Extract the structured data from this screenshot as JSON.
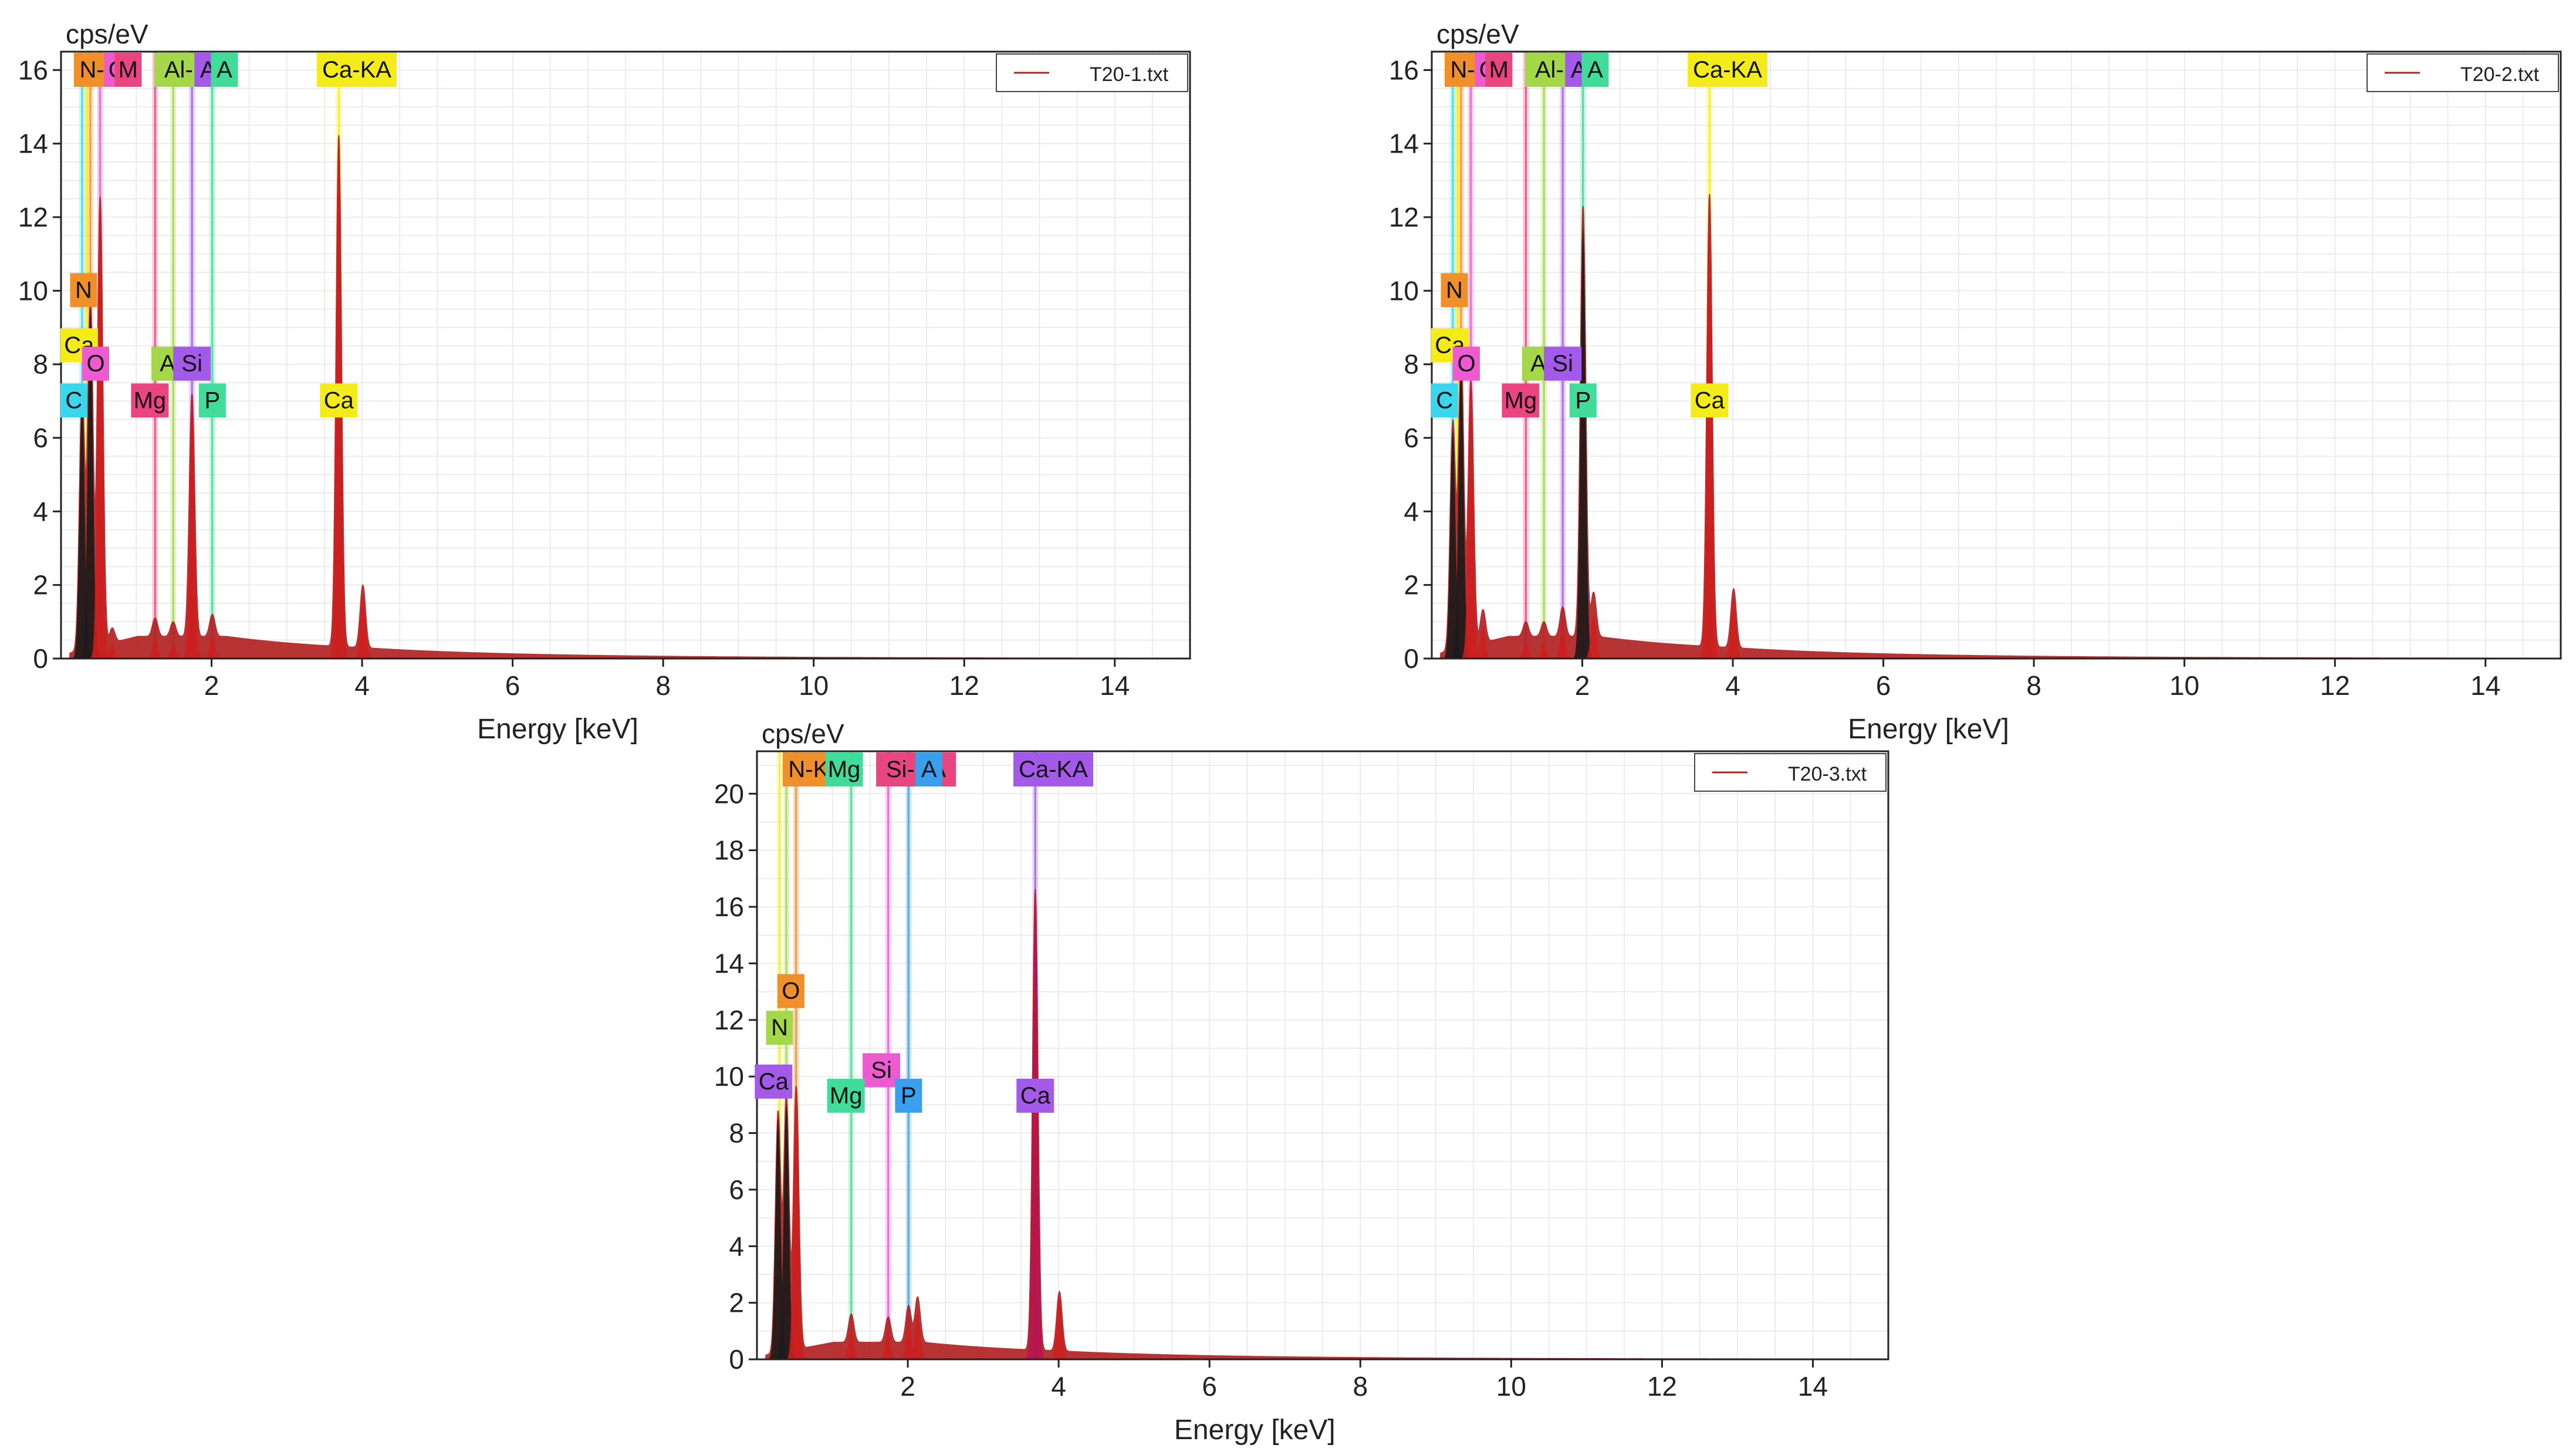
{
  "figure": {
    "x_unit_label": "Energy [keV]",
    "y_unit_label": "cps/eV"
  },
  "chart_data": [
    {
      "type": "area",
      "title": "",
      "legend": "T20-1.txt",
      "legend_position": "top-right",
      "series_color": "#b22222",
      "xlabel": "Energy [keV]",
      "ylabel": "cps/eV",
      "xlim": [
        0,
        15
      ],
      "ylim": [
        0,
        16.5
      ],
      "xticks": [
        2,
        4,
        6,
        8,
        10,
        12,
        14
      ],
      "yticks": [
        0,
        2,
        4,
        6,
        8,
        10,
        12,
        14,
        16
      ],
      "grid": true,
      "peaks": [
        {
          "energy": 0.28,
          "height": 7.0,
          "color": "#1a1a1a"
        },
        {
          "energy": 0.39,
          "height": 9.5,
          "color": "#1a1a1a"
        },
        {
          "energy": 0.52,
          "height": 12.2,
          "color": "#cc1f1f"
        },
        {
          "energy": 0.68,
          "height": 0.4,
          "color": "#cc1f1f"
        },
        {
          "energy": 1.25,
          "height": 0.5,
          "color": "#cc1f1f"
        },
        {
          "energy": 1.49,
          "height": 0.4,
          "color": "#cc1f1f"
        },
        {
          "energy": 1.74,
          "height": 6.6,
          "color": "#cc1f1f"
        },
        {
          "energy": 2.01,
          "height": 0.6,
          "color": "#cc1f1f"
        },
        {
          "energy": 3.69,
          "height": 13.9,
          "color": "#cc1f1f"
        },
        {
          "energy": 4.01,
          "height": 1.7,
          "color": "#cc1f1f"
        }
      ],
      "markers": [
        {
          "element": "C",
          "energy": 0.28,
          "color": "#3ad6ee"
        },
        {
          "element": "Ca",
          "energy": 0.34,
          "color": "#f4ec1a"
        },
        {
          "element": "N",
          "energy": 0.39,
          "color": "#f0902a"
        },
        {
          "element": "O",
          "energy": 0.52,
          "color": "#ee5ad0"
        },
        {
          "element": "Mg",
          "energy": 1.25,
          "color": "#e9457e"
        },
        {
          "element": "Al",
          "energy": 1.49,
          "color": "#a4d84a"
        },
        {
          "element": "Si",
          "energy": 1.74,
          "color": "#a45ae8"
        },
        {
          "element": "P",
          "energy": 2.01,
          "color": "#42dc9a"
        },
        {
          "element": "Ca",
          "energy": 3.69,
          "color": "#f4ec1a"
        }
      ],
      "top_labels": [
        {
          "text": "N-K",
          "energy": 0.28,
          "color": "#f0902a"
        },
        {
          "text": "O",
          "energy": 0.72,
          "color": "#ee5ad0"
        },
        {
          "text": "M",
          "energy": 0.86,
          "color": "#e9457e"
        },
        {
          "text": "Al-KA",
          "energy": 1.38,
          "color": "#a4d84a"
        },
        {
          "text": "A",
          "energy": 1.92,
          "color": "#a45ae8"
        },
        {
          "text": "A",
          "energy": 2.14,
          "color": "#42dc9a"
        },
        {
          "text": "Ca-KA",
          "energy": 3.54,
          "color": "#f4ec1a"
        }
      ],
      "side_labels": [
        {
          "text": "N",
          "energy": 0.3,
          "level": 10.0,
          "color": "#f0902a"
        },
        {
          "text": "Ca",
          "energy": 0.24,
          "level": 8.5,
          "color": "#f4ec1a"
        },
        {
          "text": "O",
          "energy": 0.46,
          "level": 8.0,
          "color": "#ee5ad0"
        },
        {
          "text": "C",
          "energy": 0.17,
          "level": 7.0,
          "color": "#3ad6ee"
        },
        {
          "text": "Mg",
          "energy": 1.18,
          "level": 7.0,
          "color": "#e9457e"
        },
        {
          "text": "Al",
          "energy": 1.45,
          "level": 8.0,
          "color": "#a4d84a"
        },
        {
          "text": "Si",
          "energy": 1.74,
          "level": 8.0,
          "color": "#a45ae8"
        },
        {
          "text": "P",
          "energy": 2.01,
          "level": 7.0,
          "color": "#42dc9a"
        },
        {
          "text": "Ca",
          "energy": 3.69,
          "level": 7.0,
          "color": "#f4ec1a"
        }
      ]
    },
    {
      "type": "area",
      "title": "",
      "legend": "T20-2.txt",
      "legend_position": "top-right",
      "series_color": "#b22222",
      "xlabel": "Energy [keV]",
      "ylabel": "cps/eV",
      "xlim": [
        0,
        15
      ],
      "ylim": [
        0,
        16.5
      ],
      "xticks": [
        2,
        4,
        6,
        8,
        10,
        12,
        14
      ],
      "yticks": [
        0,
        2,
        4,
        6,
        8,
        10,
        12,
        14,
        16
      ],
      "grid": true,
      "peaks": [
        {
          "energy": 0.28,
          "height": 6.2,
          "color": "#1a1a1a"
        },
        {
          "energy": 0.39,
          "height": 8.0,
          "color": "#1a1a1a"
        },
        {
          "energy": 0.52,
          "height": 7.2,
          "color": "#cc1f1f"
        },
        {
          "energy": 0.68,
          "height": 0.9,
          "color": "#cc1f1f"
        },
        {
          "energy": 1.25,
          "height": 0.4,
          "color": "#cc1f1f"
        },
        {
          "energy": 1.49,
          "height": 0.4,
          "color": "#cc1f1f"
        },
        {
          "energy": 1.74,
          "height": 0.8,
          "color": "#cc1f1f"
        },
        {
          "energy": 2.01,
          "height": 11.7,
          "color": "#1a1a1a"
        },
        {
          "energy": 2.15,
          "height": 1.2,
          "color": "#cc1f1f"
        },
        {
          "energy": 3.69,
          "height": 12.3,
          "color": "#cc1f1f"
        },
        {
          "energy": 4.01,
          "height": 1.6,
          "color": "#cc1f1f"
        }
      ],
      "markers": [
        {
          "element": "C",
          "energy": 0.28,
          "color": "#3ad6ee"
        },
        {
          "element": "Ca",
          "energy": 0.34,
          "color": "#f4ec1a"
        },
        {
          "element": "N",
          "energy": 0.39,
          "color": "#f0902a"
        },
        {
          "element": "O",
          "energy": 0.52,
          "color": "#ee5ad0"
        },
        {
          "element": "Mg",
          "energy": 1.25,
          "color": "#e9457e"
        },
        {
          "element": "Al",
          "energy": 1.49,
          "color": "#a4d84a"
        },
        {
          "element": "Si",
          "energy": 1.74,
          "color": "#a45ae8"
        },
        {
          "element": "P",
          "energy": 2.01,
          "color": "#42dc9a"
        },
        {
          "element": "Ca",
          "energy": 3.69,
          "color": "#f4ec1a"
        }
      ],
      "top_labels": [
        {
          "text": "N-K",
          "energy": 0.28,
          "color": "#f0902a"
        },
        {
          "text": "O",
          "energy": 0.72,
          "color": "#ee5ad0"
        },
        {
          "text": "M",
          "energy": 0.86,
          "color": "#e9457e"
        },
        {
          "text": "Al-KA",
          "energy": 1.38,
          "color": "#a4d84a"
        },
        {
          "text": "A",
          "energy": 1.92,
          "color": "#a45ae8"
        },
        {
          "text": "A",
          "energy": 2.14,
          "color": "#42dc9a"
        },
        {
          "text": "Ca-KA",
          "energy": 3.54,
          "color": "#f4ec1a"
        }
      ],
      "side_labels": [
        {
          "text": "N",
          "energy": 0.3,
          "level": 10.0,
          "color": "#f0902a"
        },
        {
          "text": "Ca",
          "energy": 0.24,
          "level": 8.5,
          "color": "#f4ec1a"
        },
        {
          "text": "O",
          "energy": 0.46,
          "level": 8.0,
          "color": "#ee5ad0"
        },
        {
          "text": "C",
          "energy": 0.17,
          "level": 7.0,
          "color": "#3ad6ee"
        },
        {
          "text": "Mg",
          "energy": 1.18,
          "level": 7.0,
          "color": "#e9457e"
        },
        {
          "text": "Al",
          "energy": 1.45,
          "level": 8.0,
          "color": "#a4d84a"
        },
        {
          "text": "Si",
          "energy": 1.74,
          "level": 8.0,
          "color": "#a45ae8"
        },
        {
          "text": "P",
          "energy": 2.01,
          "level": 7.0,
          "color": "#42dc9a"
        },
        {
          "text": "Ca",
          "energy": 3.69,
          "level": 7.0,
          "color": "#f4ec1a"
        }
      ]
    },
    {
      "type": "area",
      "title": "",
      "legend": "T20-3.txt",
      "legend_position": "top-right",
      "series_color": "#b22222",
      "xlabel": "Energy [keV]",
      "ylabel": "cps/eV",
      "xlim": [
        0,
        15
      ],
      "ylim": [
        0,
        21.5
      ],
      "xticks": [
        2,
        4,
        6,
        8,
        10,
        12,
        14
      ],
      "yticks": [
        0,
        2,
        4,
        6,
        8,
        10,
        12,
        14,
        16,
        18,
        20
      ],
      "grid": true,
      "peaks": [
        {
          "energy": 0.28,
          "height": 8.5,
          "color": "#1a1a1a"
        },
        {
          "energy": 0.39,
          "height": 9.0,
          "color": "#1a1a1a"
        },
        {
          "energy": 0.52,
          "height": 9.3,
          "color": "#cc1f1f"
        },
        {
          "energy": 1.25,
          "height": 1.0,
          "color": "#cc1f1f"
        },
        {
          "energy": 1.74,
          "height": 0.9,
          "color": "#cc1f1f"
        },
        {
          "energy": 2.01,
          "height": 1.3,
          "color": "#cc1f1f"
        },
        {
          "energy": 2.13,
          "height": 1.6,
          "color": "#cc1f1f"
        },
        {
          "energy": 3.69,
          "height": 16.3,
          "color": "#b5154f"
        },
        {
          "energy": 4.01,
          "height": 2.1,
          "color": "#cc1f1f"
        }
      ],
      "markers": [
        {
          "element": "Ca",
          "energy": 0.3,
          "color": "#f4ec1a"
        },
        {
          "element": "N",
          "energy": 0.39,
          "color": "#a4d84a"
        },
        {
          "element": "O",
          "energy": 0.52,
          "color": "#f0902a"
        },
        {
          "element": "Mg",
          "energy": 1.25,
          "color": "#42dc9a"
        },
        {
          "element": "Si",
          "energy": 1.74,
          "color": "#ee5ad0"
        },
        {
          "element": "P",
          "energy": 2.01,
          "color": "#3aa0ee"
        },
        {
          "element": "Ca",
          "energy": 3.69,
          "color": "#a45ae8"
        }
      ],
      "top_labels": [
        {
          "text": "N-K",
          "energy": 0.45,
          "color": "#f0902a"
        },
        {
          "text": "Mg",
          "energy": 1.0,
          "color": "#42dc9a"
        },
        {
          "text": "Si-KA",
          "energy": 1.72,
          "color": "#e9457e"
        },
        {
          "text": "A",
          "energy": 2.25,
          "color": "#3aa0ee"
        },
        {
          "text": "Ca-KA",
          "energy": 3.54,
          "color": "#a45ae8"
        }
      ],
      "side_labels": [
        {
          "text": "O",
          "energy": 0.45,
          "level": 13.0,
          "color": "#f0902a"
        },
        {
          "text": "N",
          "energy": 0.3,
          "level": 11.7,
          "color": "#a4d84a"
        },
        {
          "text": "Ca",
          "energy": 0.22,
          "level": 9.8,
          "color": "#a45ae8"
        },
        {
          "text": "Si",
          "energy": 1.65,
          "level": 10.2,
          "color": "#ee5ad0"
        },
        {
          "text": "Mg",
          "energy": 1.18,
          "level": 9.3,
          "color": "#42dc9a"
        },
        {
          "text": "P",
          "energy": 2.01,
          "level": 9.3,
          "color": "#3aa0ee"
        },
        {
          "text": "Ca",
          "energy": 3.69,
          "level": 9.3,
          "color": "#a45ae8"
        }
      ]
    }
  ]
}
